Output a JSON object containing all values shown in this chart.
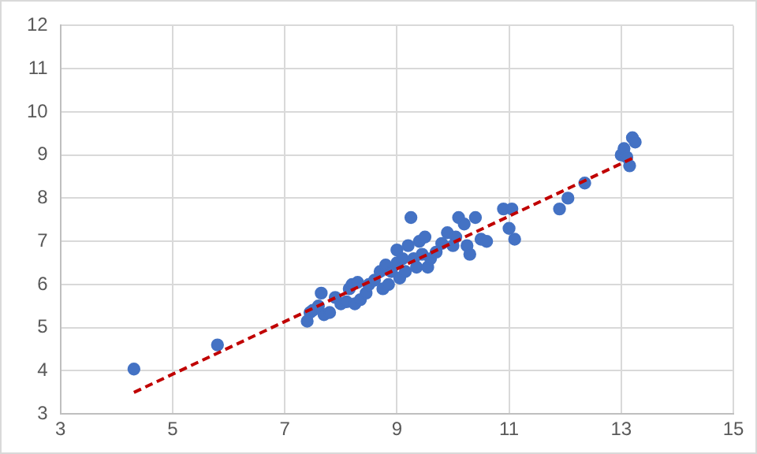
{
  "chart_data": {
    "type": "scatter",
    "xlim": [
      3,
      15
    ],
    "xticks": [
      3,
      5,
      7,
      9,
      11,
      13,
      15
    ],
    "ylim": [
      3,
      12
    ],
    "yticks": [
      3,
      4,
      5,
      6,
      7,
      8,
      9,
      10,
      11,
      12
    ],
    "grid": true,
    "legend": false,
    "marker": "circle",
    "series": [
      {
        "color": "#4472c4",
        "x": [
          4.31,
          5.8,
          7.4,
          7.45,
          7.5,
          7.6,
          7.65,
          7.7,
          7.8,
          7.9,
          8.0,
          8.1,
          8.15,
          8.2,
          8.25,
          8.3,
          8.35,
          8.45,
          8.5,
          8.6,
          8.7,
          8.75,
          8.8,
          8.85,
          8.9,
          9.0,
          9.0,
          9.05,
          9.1,
          9.15,
          9.2,
          9.25,
          9.3,
          9.35,
          9.4,
          9.45,
          9.5,
          9.55,
          9.6,
          9.7,
          9.8,
          9.9,
          10.0,
          10.05,
          10.1,
          10.2,
          10.25,
          10.3,
          10.4,
          10.5,
          10.6,
          10.9,
          11.0,
          11.05,
          11.1,
          11.9,
          12.05,
          12.35,
          13.0,
          13.05,
          13.1,
          13.15,
          13.2,
          13.25
        ],
        "values": [
          4.04,
          4.6,
          5.15,
          5.35,
          5.4,
          5.5,
          5.8,
          5.3,
          5.35,
          5.7,
          5.55,
          5.6,
          5.9,
          6.0,
          5.55,
          6.05,
          5.65,
          5.8,
          6.0,
          6.1,
          6.3,
          5.9,
          6.45,
          6.0,
          6.3,
          6.8,
          6.5,
          6.15,
          6.6,
          6.3,
          6.9,
          7.55,
          6.6,
          6.4,
          7.0,
          6.7,
          7.1,
          6.4,
          6.6,
          6.75,
          6.95,
          7.2,
          6.9,
          7.1,
          7.55,
          7.4,
          6.9,
          6.7,
          7.55,
          7.05,
          7.0,
          7.75,
          7.3,
          7.75,
          7.05,
          7.75,
          8.0,
          8.35,
          9.0,
          9.15,
          8.95,
          8.75,
          9.4,
          9.3
        ]
      },
      {
        "type": "line",
        "color": "#c00000",
        "line_style": "dashed",
        "marker": "none",
        "x": [
          4.31,
          13.21
        ],
        "values": [
          3.5,
          8.93
        ]
      }
    ]
  }
}
